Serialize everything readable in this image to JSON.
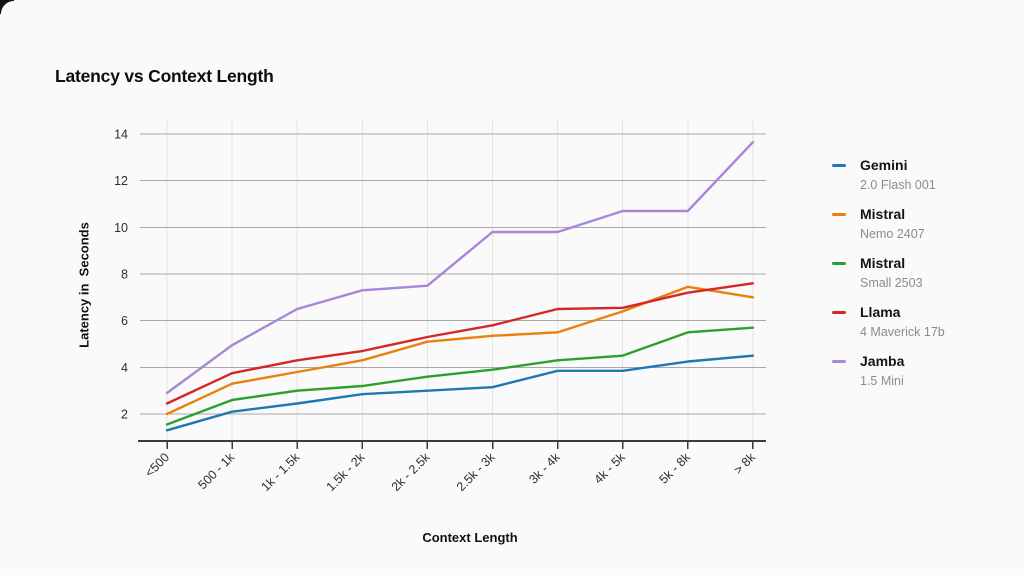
{
  "page": {
    "background": "#fafafa"
  },
  "chart_data": {
    "type": "line",
    "title": "Latency vs Context Length",
    "xlabel": "Context Length",
    "ylabel": "Latency in  Seconds",
    "legend_position": "right",
    "grid": true,
    "categories": [
      "<500",
      "500 - 1k",
      "1k - 1.5k",
      "1.5k - 2k",
      "2k - 2.5k",
      "2.5k - 3k",
      "3k - 4k",
      "4k - 5k",
      "5k - 8k",
      "> 8k"
    ],
    "y_ticks": [
      2,
      4,
      6,
      8,
      10,
      12,
      14
    ],
    "ylim": [
      0.8,
      14.6
    ],
    "series": [
      {
        "name": "Gemini",
        "subtitle": "2.0 Flash 001",
        "color": "#1f77b4",
        "values": [
          1.3,
          2.1,
          2.45,
          2.85,
          3.0,
          3.15,
          3.85,
          3.85,
          4.25,
          4.5
        ]
      },
      {
        "name": "Mistral",
        "subtitle": "Nemo 2407",
        "color": "#e8810e",
        "values": [
          2.0,
          3.3,
          3.8,
          4.3,
          5.1,
          5.35,
          5.5,
          6.4,
          7.45,
          7.0
        ]
      },
      {
        "name": "Mistral",
        "subtitle": "Small 2503",
        "color": "#2ca02c",
        "values": [
          1.55,
          2.6,
          3.0,
          3.2,
          3.6,
          3.9,
          4.3,
          4.5,
          5.5,
          5.7
        ]
      },
      {
        "name": "Llama",
        "subtitle": "4 Maverick 17b",
        "color": "#d62728",
        "values": [
          2.45,
          3.75,
          4.3,
          4.7,
          5.3,
          5.8,
          6.5,
          6.55,
          7.2,
          7.6
        ]
      },
      {
        "name": "Jamba",
        "subtitle": "1.5 Mini",
        "color": "#a886d8",
        "values": [
          2.9,
          4.95,
          6.5,
          7.3,
          7.5,
          9.8,
          9.8,
          10.7,
          10.7,
          13.65
        ]
      }
    ]
  },
  "colors": {
    "grid_horizontal": "#a9a9a9",
    "grid_vertical": "#e4e4e4",
    "axis_line": "#3c3c3c",
    "tick_label": "#2e2e2e"
  }
}
